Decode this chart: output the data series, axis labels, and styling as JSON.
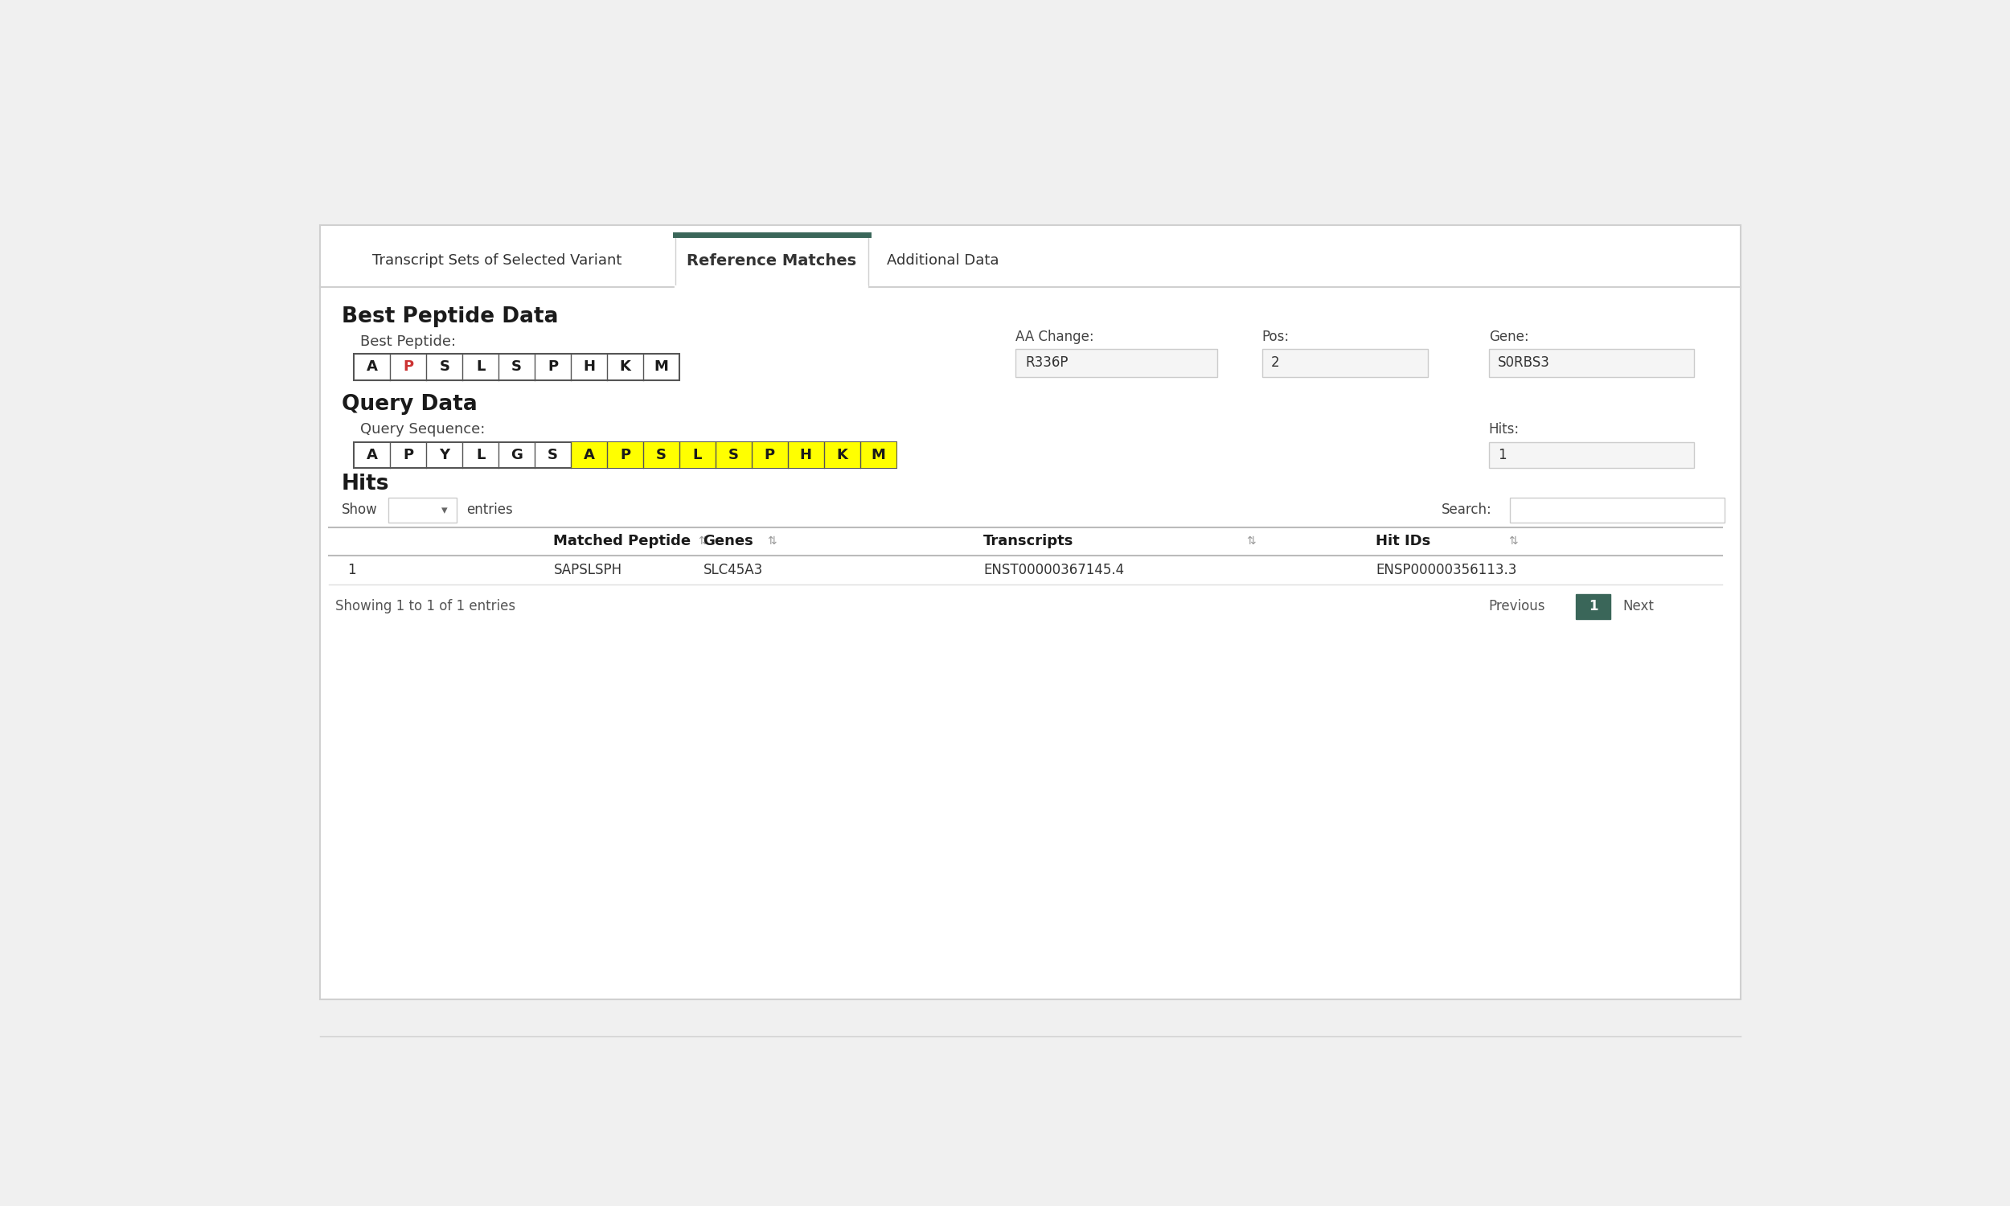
{
  "tab_labels": [
    "Transcript Sets of Selected Variant",
    "Reference Matches",
    "Additional Data"
  ],
  "active_tab": 1,
  "active_tab_color": "#3a6659",
  "section1_title": "Best Peptide Data",
  "best_peptide_label": "Best Peptide:",
  "best_peptide_seq": [
    "A",
    "P",
    "S",
    "L",
    "S",
    "P",
    "H",
    "K",
    "M"
  ],
  "best_peptide_highlight": [
    1
  ],
  "best_peptide_highlight_color": "#cc3333",
  "aa_change_label": "AA Change:",
  "aa_change_value": "R336P",
  "pos_label": "Pos:",
  "pos_value": "2",
  "gene_label": "Gene:",
  "gene_value": "S0RBS3",
  "section2_title": "Query Data",
  "query_seq_label": "Query Sequence:",
  "query_seq": [
    "A",
    "P",
    "Y",
    "L",
    "G",
    "S",
    "A",
    "P",
    "S",
    "L",
    "S",
    "P",
    "H",
    "K",
    "M"
  ],
  "query_highlight": [
    6,
    7,
    8,
    9,
    10,
    11,
    12,
    13,
    14
  ],
  "query_highlight_bg": "#ffff00",
  "hits_label": "Hits",
  "hits_count_label": "Hits:",
  "hits_count_value": "1",
  "show_label": "Show",
  "entries_label": "entries",
  "search_label": "Search:",
  "table_headers": [
    "Matched Peptide",
    "Genes",
    "Transcripts",
    "Hit IDs"
  ],
  "table_row": [
    "1",
    "SAPSLSPH",
    "SLC45A3",
    "ENST00000367145.4",
    "ENSP00000356113.3"
  ],
  "showing_text": "Showing 1 to 1 of 1 entries",
  "prev_label": "Previous",
  "next_label": "Next",
  "page_label": "1",
  "bg_color": "#f0f0f0",
  "panel_bg": "#ffffff",
  "border_color": "#cccccc",
  "text_color": "#333333",
  "input_bg": "#f5f5f5",
  "page_btn_bg": "#3a6659",
  "page_btn_fg": "#ffffff"
}
